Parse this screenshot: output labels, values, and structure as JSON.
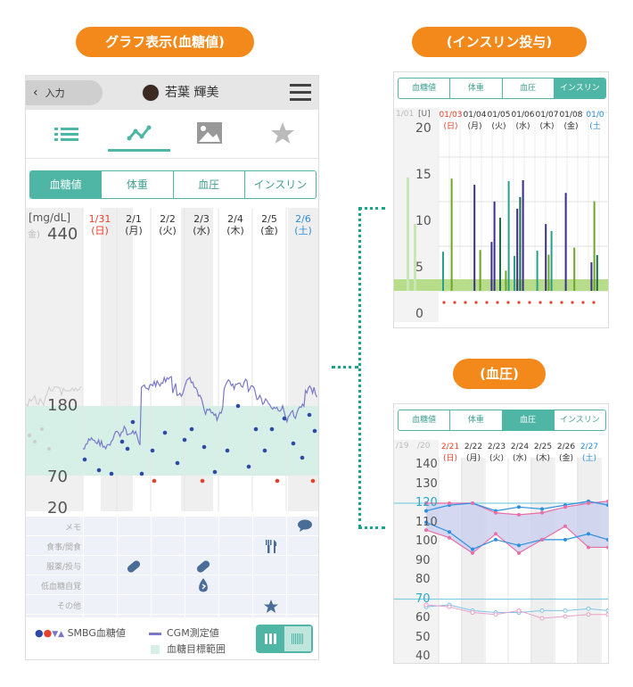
{
  "labels": {
    "main_title": "グラフ表示(血糖値)",
    "insulin_title": "(インスリン投与)",
    "bp_title": "(血圧)"
  },
  "main": {
    "back_label": "入力",
    "user_name": "若葉 輝美",
    "tabs": [
      "血糖値",
      "体重",
      "血圧",
      "インスリン"
    ],
    "unit": "[mg/dL]",
    "corner_day": "金)",
    "y_ticks": [
      "440",
      "180",
      "70",
      "20"
    ],
    "dates": [
      [
        "1/31",
        "(日)"
      ],
      [
        "2/1",
        "(月)"
      ],
      [
        "2/2",
        "(火)"
      ],
      [
        "2/3",
        "(水)"
      ],
      [
        "2/4",
        "(木)"
      ],
      [
        "2/5",
        "(金)"
      ],
      [
        "2/6",
        "(土)"
      ]
    ],
    "row_labels": [
      "メモ",
      "食事/間食",
      "服薬/投与",
      "低血糖自覚",
      "その他"
    ],
    "legend_smbg": "SMBG血糖値",
    "legend_cgm": "CGM測定値",
    "legend_range": "血糖目標範囲",
    "colors": {
      "accent": "#4fb6a6",
      "range": "#d6f0e8",
      "cgm": "#7b78c8",
      "smbg": "#2c4aa6",
      "low": "#e8402a",
      "sunday": "#e8402a",
      "saturday": "#2a8fd8"
    }
  },
  "insulin": {
    "tabs": [
      "血糖値",
      "体重",
      "血圧",
      "インスリン"
    ],
    "unit": "[U]",
    "corner": "1/01",
    "dates": [
      [
        "01/03",
        "(日)"
      ],
      [
        "01/04",
        "(月)"
      ],
      [
        "01/05",
        "(火)"
      ],
      [
        "01/06",
        "(水)"
      ],
      [
        "01/07",
        "(木)"
      ],
      [
        "01/08",
        "(金)"
      ],
      [
        "01/0",
        "(土"
      ]
    ],
    "y_ticks": [
      "20",
      "15",
      "10",
      "5",
      "0"
    ]
  },
  "bp": {
    "tabs": [
      "血糖値",
      "体重",
      "血圧",
      "インスリン"
    ],
    "corner": "/19",
    "corner2": "/20",
    "dates": [
      [
        "2/21",
        "(日)"
      ],
      [
        "2/22",
        "(月)"
      ],
      [
        "2/23",
        "(火)"
      ],
      [
        "2/24",
        "(水)"
      ],
      [
        "2/25",
        "(木)"
      ],
      [
        "2/26",
        "(金)"
      ],
      [
        "2/27",
        "(土)"
      ]
    ],
    "y_ticks": [
      "140",
      "130",
      "120",
      "110",
      "100",
      "90",
      "80",
      "70",
      "60",
      "50",
      "40"
    ]
  }
}
